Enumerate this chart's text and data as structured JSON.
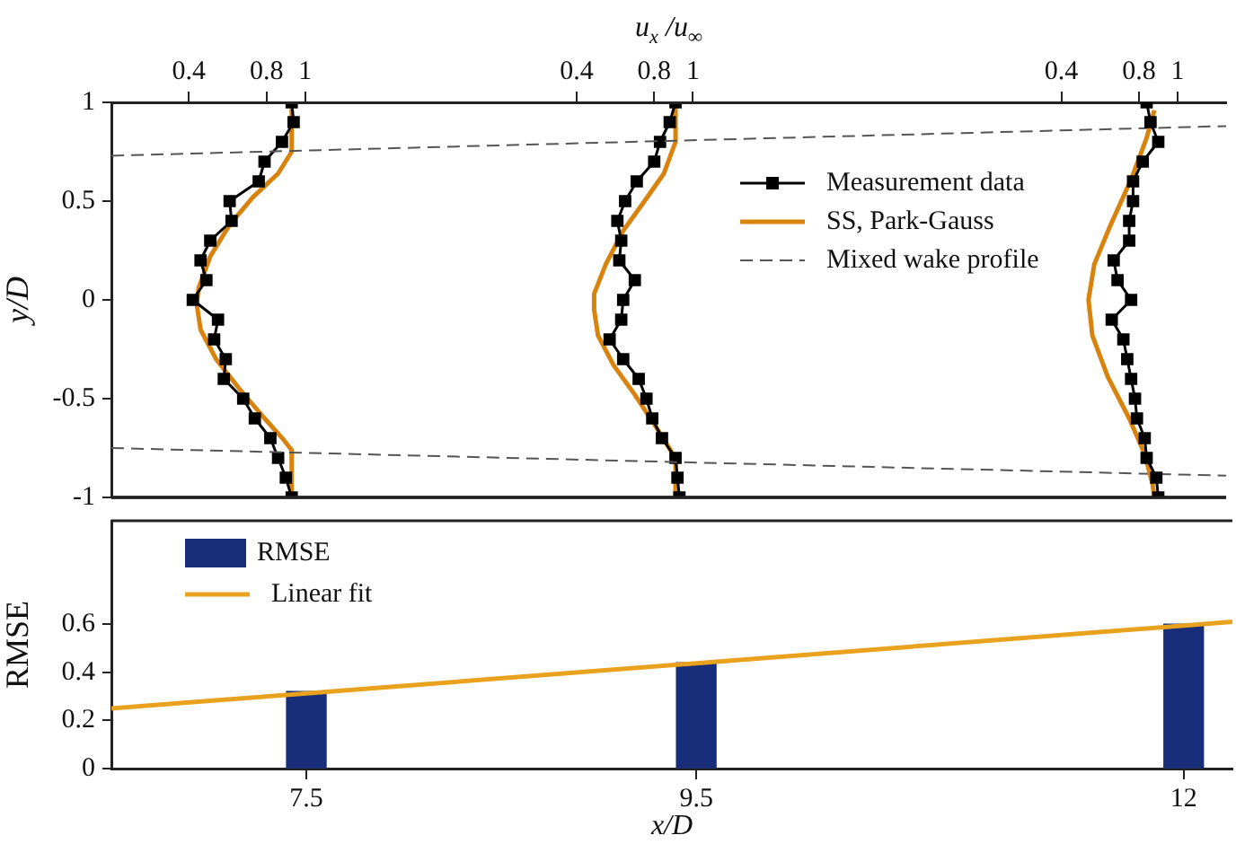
{
  "chart_data": [
    {
      "type": "line",
      "ylabel": "y/D",
      "xlim": [
        0,
        5.75
      ],
      "xticks": [
        0.4,
        0.8,
        1
      ],
      "ylim": [
        -1,
        1
      ],
      "yticks": [
        -1,
        -0.5,
        0,
        0.5,
        1
      ],
      "grid": false,
      "series": [
        {
          "color": "#000000",
          "marker": "square",
          "line_style": "solid",
          "x": [
            0.93,
            0.94,
            0.88,
            0.79,
            0.76,
            0.61,
            0.62,
            0.51,
            0.46,
            0.49,
            0.42,
            0.55,
            0.53,
            0.59,
            0.58,
            0.68,
            0.74,
            0.82,
            0.86,
            0.9,
            0.93
          ],
          "values": [
            1,
            0.9,
            0.8,
            0.7,
            0.6,
            0.5,
            0.4,
            0.3,
            0.2,
            0.1,
            0,
            -0.1,
            -0.2,
            -0.3,
            -0.4,
            -0.5,
            -0.6,
            -0.7,
            -0.8,
            -0.9,
            -1
          ]
        },
        {
          "color": "#d9830f",
          "marker": "none",
          "line_style": "solid",
          "x": [
            0.93,
            0.93,
            0.86,
            0.73,
            0.61,
            0.51,
            0.45,
            0.44,
            0.46,
            0.54,
            0.66,
            0.79,
            0.89,
            0.93,
            0.93
          ],
          "values": [
            0.96,
            0.75,
            0.64,
            0.52,
            0.38,
            0.22,
            0.06,
            -0.02,
            -0.15,
            -0.3,
            -0.45,
            -0.6,
            -0.71,
            -0.76,
            -1
          ]
        }
      ]
    },
    {
      "type": "line",
      "xlabel": "u$_{x}$ /u$_{∞}$",
      "xlim": [
        -2,
        3.75
      ],
      "xticks": [
        0.4,
        0.8,
        1
      ],
      "ylim": [
        -1,
        1
      ],
      "tick_labels": "x",
      "grid": false,
      "series": [
        {
          "color": "#000000",
          "marker": "square",
          "line_style": "solid",
          "x": [
            0.91,
            0.88,
            0.83,
            0.8,
            0.71,
            0.65,
            0.61,
            0.63,
            0.62,
            0.7,
            0.64,
            0.63,
            0.57,
            0.64,
            0.72,
            0.76,
            0.79,
            0.84,
            0.91,
            0.92,
            0.93
          ],
          "values": [
            1,
            0.9,
            0.8,
            0.7,
            0.6,
            0.5,
            0.4,
            0.3,
            0.2,
            0.1,
            0,
            -0.1,
            -0.2,
            -0.3,
            -0.4,
            -0.5,
            -0.6,
            -0.7,
            -0.8,
            -0.9,
            -1
          ]
        },
        {
          "color": "#d9830f",
          "marker": "none",
          "line_style": "solid",
          "x": [
            0.91,
            0.91,
            0.85,
            0.75,
            0.64,
            0.55,
            0.49,
            0.49,
            0.51,
            0.59,
            0.7,
            0.82,
            0.89,
            0.91,
            0.91
          ],
          "values": [
            0.97,
            0.8,
            0.64,
            0.5,
            0.35,
            0.18,
            0.03,
            -0.05,
            -0.18,
            -0.33,
            -0.48,
            -0.66,
            -0.77,
            -0.81,
            -1
          ]
        }
      ]
    },
    {
      "type": "line",
      "xlim": [
        -4.5,
        1.25
      ],
      "xticks": [
        0.4,
        0.8,
        1
      ],
      "ylim": [
        -1,
        1
      ],
      "tick_labels": "x",
      "grid": false,
      "legend": "right",
      "series": [
        {
          "name": "Measurement data",
          "color": "#000000",
          "marker": "square",
          "line_style": "solid",
          "x": [
            0.84,
            0.86,
            0.9,
            0.82,
            0.77,
            0.77,
            0.75,
            0.75,
            0.67,
            0.69,
            0.76,
            0.66,
            0.72,
            0.74,
            0.76,
            0.78,
            0.79,
            0.83,
            0.84,
            0.89,
            0.9
          ],
          "values": [
            1,
            0.9,
            0.8,
            0.7,
            0.6,
            0.5,
            0.4,
            0.3,
            0.2,
            0.1,
            0,
            -0.1,
            -0.2,
            -0.3,
            -0.4,
            -0.5,
            -0.6,
            -0.7,
            -0.8,
            -0.9,
            -1
          ]
        },
        {
          "name": "SS, Park-Gauss",
          "color": "#d9830f",
          "marker": "none",
          "line_style": "solid",
          "x": [
            0.88,
            0.84,
            0.76,
            0.65,
            0.57,
            0.54,
            0.56,
            0.64,
            0.75,
            0.83,
            0.87,
            0.88
          ],
          "values": [
            0.96,
            0.82,
            0.61,
            0.37,
            0.18,
            0,
            -0.18,
            -0.39,
            -0.6,
            -0.78,
            -0.93,
            -1
          ]
        },
        {
          "name": "Mixed wake profile",
          "color": "#555555",
          "marker": "none",
          "line_style": "dashed",
          "x": [
            -4.5,
            1.25
          ],
          "values": [
            0.73,
            0.88
          ]
        },
        {
          "color": "#555555",
          "marker": "none",
          "line_style": "dashed",
          "x": [
            -4.5,
            1.25
          ],
          "values": [
            -0.75,
            -0.89
          ]
        }
      ]
    },
    {
      "type": "bar",
      "xlabel": "x/D",
      "ylabel": "RMSE",
      "xlim": [
        6.5,
        12.25
      ],
      "xticks": [
        7.5,
        9.5,
        12
      ],
      "ylim": [
        0,
        1.03
      ],
      "yticks": [
        0,
        0.2,
        0.4,
        0.6
      ],
      "grid": false,
      "legend": "top left",
      "series": [
        {
          "name": "RMSE",
          "type": "bar",
          "color": "#182e7a",
          "x": [
            7.5,
            9.5,
            12
          ],
          "values": [
            0.32,
            0.44,
            0.6
          ]
        },
        {
          "name": "Linear fit",
          "type": "line",
          "color": "#e8a21e",
          "marker": "none",
          "line_style": "solid",
          "x": [
            6.5,
            12.25
          ],
          "values": [
            0.25,
            0.61
          ]
        }
      ]
    }
  ]
}
